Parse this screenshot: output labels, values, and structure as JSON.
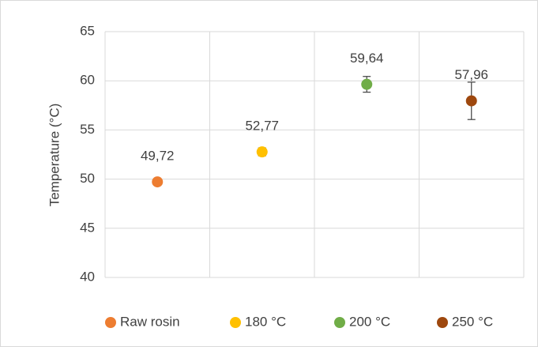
{
  "chart_data": {
    "type": "dot",
    "y_label": "Temperature (°C)",
    "series": [
      {
        "name": "Raw rosin",
        "color": "#ed7d31",
        "values": [
          49.72
        ],
        "value_labels": [
          "49,72"
        ],
        "errors": [
          0.2
        ]
      },
      {
        "name": "180 °C",
        "color": "#ffc000",
        "values": [
          52.77
        ],
        "value_labels": [
          "52,77"
        ],
        "errors": [
          0.4
        ]
      },
      {
        "name": "200 °C",
        "color": "#70ad47",
        "values": [
          59.64
        ],
        "value_labels": [
          "59,64"
        ],
        "errors": [
          0.8
        ]
      },
      {
        "name": "250 °C",
        "color": "#9e480e",
        "values": [
          57.96
        ],
        "value_labels": [
          "57,96"
        ],
        "errors": [
          1.9
        ]
      }
    ],
    "ylim": [
      40,
      65
    ],
    "yticks": [
      40,
      45,
      50,
      55,
      60,
      65
    ],
    "grid": true,
    "legend": "bottom"
  }
}
